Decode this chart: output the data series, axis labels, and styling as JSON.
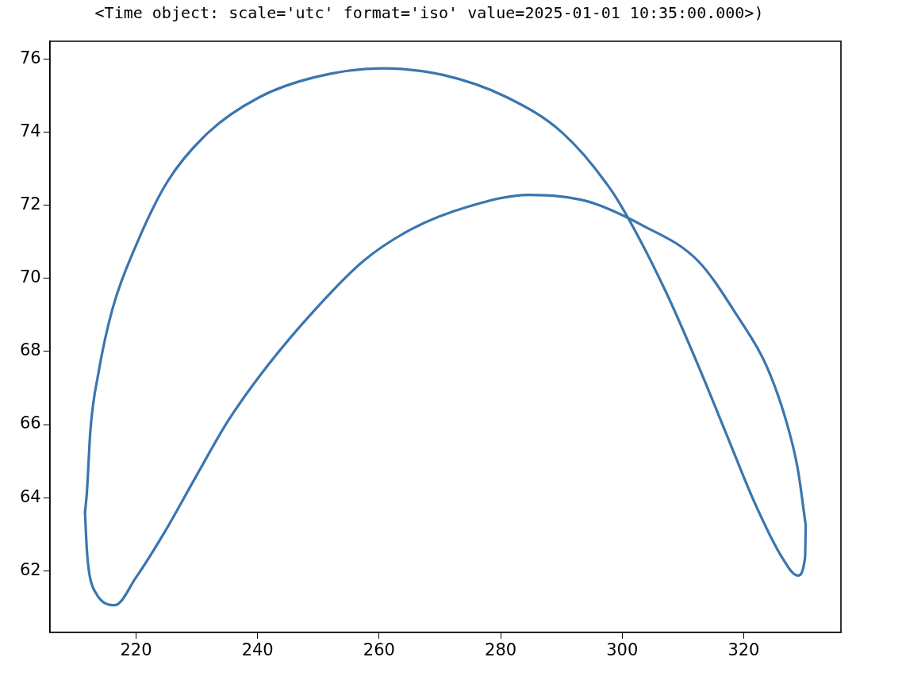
{
  "chart_data": {
    "type": "line",
    "title": "<Time object: scale='utc' format='iso' value=2025-01-01 10:35:00.000>)",
    "xlim": [
      205.8,
      336.0
    ],
    "ylim": [
      60.32,
      76.48
    ],
    "xticks": [
      220,
      240,
      260,
      280,
      300,
      320
    ],
    "yticks": [
      62,
      64,
      66,
      68,
      70,
      72,
      74,
      76
    ],
    "grid": false,
    "legend": false,
    "marker": "none",
    "line_style": "solid",
    "series": [
      {
        "color": "#3a76af",
        "x": [
          211.6,
          211.9,
          212.5,
          213.8,
          216.1,
          220.0,
          225.2,
          231.8,
          240.3,
          249.5,
          260.4,
          270.5,
          281.0,
          290.2,
          298.1,
          302.0,
          307.3,
          312.5,
          317.1,
          321.7,
          326.3,
          328.9,
          330.1,
          330.2
        ],
        "values": [
          63.6,
          64.12,
          65.87,
          67.4,
          69.15,
          70.9,
          72.65,
          73.97,
          74.95,
          75.5,
          75.74,
          75.56,
          74.95,
          73.97,
          72.43,
          71.34,
          69.59,
          67.62,
          65.76,
          63.9,
          62.37,
          61.87,
          62.37,
          63.25
        ]
      },
      {
        "color": "#3a76af",
        "x": [
          330.2,
          328.9,
          327.0,
          323.7,
          319.1,
          312.5,
          303.3,
          294.1,
          284.7,
          274.5,
          265.3,
          257.4,
          249.5,
          241.7,
          235.1,
          229.8,
          224.6,
          220.0,
          216.5,
          213.4,
          212.3,
          211.9,
          211.6
        ],
        "values": [
          63.25,
          64.78,
          66.09,
          67.62,
          68.93,
          70.47,
          71.45,
          72.11,
          72.28,
          71.95,
          71.34,
          70.47,
          69.15,
          67.62,
          66.09,
          64.56,
          63.03,
          61.82,
          61.06,
          61.39,
          61.93,
          62.59,
          63.6
        ]
      }
    ]
  }
}
